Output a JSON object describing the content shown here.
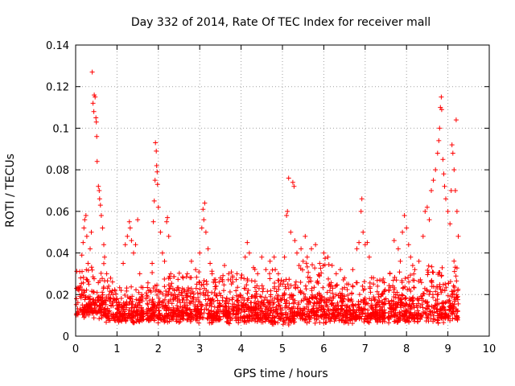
{
  "chart_data": {
    "type": "scatter",
    "title": "Day 332 of 2014, Rate Of TEC Index for receiver mall",
    "xlabel": "GPS time / hours",
    "ylabel": "ROTI / TECUs",
    "xlim": [
      0,
      10
    ],
    "ylim": [
      0,
      0.14
    ],
    "xticks": [
      "0",
      "1",
      "2",
      "3",
      "4",
      "5",
      "6",
      "7",
      "8",
      "9",
      "10"
    ],
    "yticks": [
      "0",
      "0.02",
      "0.04",
      "0.06",
      "0.08",
      "0.1",
      "0.12",
      "0.14"
    ],
    "grid": true,
    "marker": "+",
    "series_color": "#ff0000",
    "series": [
      {
        "name": "ROTI",
        "points": [
          [
            0.02,
            0.018
          ],
          [
            0.05,
            0.012
          ],
          [
            0.08,
            0.022
          ],
          [
            0.1,
            0.031
          ],
          [
            0.12,
            0.028
          ],
          [
            0.15,
            0.039
          ],
          [
            0.18,
            0.045
          ],
          [
            0.2,
            0.052
          ],
          [
            0.22,
            0.056
          ],
          [
            0.25,
            0.058
          ],
          [
            0.27,
            0.048
          ],
          [
            0.3,
            0.035
          ],
          [
            0.32,
            0.025
          ],
          [
            0.35,
            0.042
          ],
          [
            0.38,
            0.05
          ],
          [
            0.4,
            0.127
          ],
          [
            0.42,
            0.112
          ],
          [
            0.44,
            0.108
          ],
          [
            0.45,
            0.116
          ],
          [
            0.47,
            0.115
          ],
          [
            0.49,
            0.105
          ],
          [
            0.5,
            0.103
          ],
          [
            0.51,
            0.096
          ],
          [
            0.52,
            0.084
          ],
          [
            0.55,
            0.072
          ],
          [
            0.57,
            0.07
          ],
          [
            0.58,
            0.066
          ],
          [
            0.6,
            0.063
          ],
          [
            0.62,
            0.058
          ],
          [
            0.65,
            0.052
          ],
          [
            0.68,
            0.044
          ],
          [
            0.7,
            0.038
          ],
          [
            0.75,
            0.03
          ],
          [
            0.8,
            0.024
          ],
          [
            0.9,
            0.02
          ],
          [
            1.0,
            0.018
          ],
          [
            1.1,
            0.022
          ],
          [
            1.15,
            0.035
          ],
          [
            1.2,
            0.044
          ],
          [
            1.25,
            0.048
          ],
          [
            1.3,
            0.055
          ],
          [
            1.32,
            0.052
          ],
          [
            1.35,
            0.046
          ],
          [
            1.4,
            0.04
          ],
          [
            1.45,
            0.044
          ],
          [
            1.5,
            0.056
          ],
          [
            1.55,
            0.03
          ],
          [
            1.6,
            0.02
          ],
          [
            1.7,
            0.018
          ],
          [
            1.8,
            0.022
          ],
          [
            1.85,
            0.035
          ],
          [
            1.88,
            0.055
          ],
          [
            1.9,
            0.065
          ],
          [
            1.92,
            0.075
          ],
          [
            1.93,
            0.093
          ],
          [
            1.95,
            0.089
          ],
          [
            1.96,
            0.082
          ],
          [
            1.97,
            0.079
          ],
          [
            1.98,
            0.073
          ],
          [
            2.0,
            0.062
          ],
          [
            2.05,
            0.05
          ],
          [
            2.1,
            0.04
          ],
          [
            2.15,
            0.036
          ],
          [
            2.2,
            0.055
          ],
          [
            2.22,
            0.057
          ],
          [
            2.25,
            0.048
          ],
          [
            2.3,
            0.03
          ],
          [
            2.4,
            0.02
          ],
          [
            2.5,
            0.022
          ],
          [
            2.6,
            0.028
          ],
          [
            2.7,
            0.03
          ],
          [
            2.8,
            0.036
          ],
          [
            2.9,
            0.032
          ],
          [
            3.0,
            0.04
          ],
          [
            3.05,
            0.052
          ],
          [
            3.08,
            0.061
          ],
          [
            3.1,
            0.056
          ],
          [
            3.12,
            0.064
          ],
          [
            3.15,
            0.05
          ],
          [
            3.2,
            0.042
          ],
          [
            3.25,
            0.035
          ],
          [
            3.3,
            0.03
          ],
          [
            3.4,
            0.024
          ],
          [
            3.5,
            0.028
          ],
          [
            3.6,
            0.034
          ],
          [
            3.7,
            0.03
          ],
          [
            3.8,
            0.026
          ],
          [
            3.9,
            0.03
          ],
          [
            4.0,
            0.028
          ],
          [
            4.1,
            0.038
          ],
          [
            4.15,
            0.045
          ],
          [
            4.2,
            0.04
          ],
          [
            4.3,
            0.033
          ],
          [
            4.4,
            0.03
          ],
          [
            4.5,
            0.038
          ],
          [
            4.6,
            0.032
          ],
          [
            4.7,
            0.036
          ],
          [
            4.8,
            0.038
          ],
          [
            4.9,
            0.03
          ],
          [
            5.0,
            0.025
          ],
          [
            5.05,
            0.038
          ],
          [
            5.1,
            0.058
          ],
          [
            5.12,
            0.06
          ],
          [
            5.15,
            0.076
          ],
          [
            5.2,
            0.05
          ],
          [
            5.25,
            0.074
          ],
          [
            5.28,
            0.072
          ],
          [
            5.3,
            0.046
          ],
          [
            5.35,
            0.04
          ],
          [
            5.4,
            0.034
          ],
          [
            5.45,
            0.042
          ],
          [
            5.5,
            0.036
          ],
          [
            5.55,
            0.048
          ],
          [
            5.6,
            0.038
          ],
          [
            5.7,
            0.042
          ],
          [
            5.8,
            0.044
          ],
          [
            5.9,
            0.035
          ],
          [
            6.0,
            0.04
          ],
          [
            6.1,
            0.038
          ],
          [
            6.2,
            0.034
          ],
          [
            6.3,
            0.03
          ],
          [
            6.4,
            0.032
          ],
          [
            6.5,
            0.028
          ],
          [
            6.6,
            0.025
          ],
          [
            6.7,
            0.032
          ],
          [
            6.8,
            0.042
          ],
          [
            6.85,
            0.045
          ],
          [
            6.9,
            0.06
          ],
          [
            6.92,
            0.066
          ],
          [
            6.95,
            0.05
          ],
          [
            7.0,
            0.044
          ],
          [
            7.05,
            0.045
          ],
          [
            7.1,
            0.038
          ],
          [
            7.2,
            0.028
          ],
          [
            7.3,
            0.024
          ],
          [
            7.4,
            0.02
          ],
          [
            7.5,
            0.018
          ],
          [
            7.6,
            0.03
          ],
          [
            7.7,
            0.046
          ],
          [
            7.8,
            0.042
          ],
          [
            7.85,
            0.036
          ],
          [
            7.9,
            0.05
          ],
          [
            7.95,
            0.058
          ],
          [
            8.0,
            0.052
          ],
          [
            8.05,
            0.044
          ],
          [
            8.1,
            0.038
          ],
          [
            8.15,
            0.034
          ],
          [
            8.2,
            0.032
          ],
          [
            8.3,
            0.036
          ],
          [
            8.4,
            0.048
          ],
          [
            8.45,
            0.06
          ],
          [
            8.5,
            0.062
          ],
          [
            8.55,
            0.056
          ],
          [
            8.6,
            0.07
          ],
          [
            8.65,
            0.075
          ],
          [
            8.7,
            0.08
          ],
          [
            8.75,
            0.088
          ],
          [
            8.78,
            0.094
          ],
          [
            8.8,
            0.1
          ],
          [
            8.82,
            0.11
          ],
          [
            8.84,
            0.115
          ],
          [
            8.85,
            0.109
          ],
          [
            8.88,
            0.085
          ],
          [
            8.9,
            0.078
          ],
          [
            8.92,
            0.072
          ],
          [
            8.95,
            0.066
          ],
          [
            9.0,
            0.06
          ],
          [
            9.05,
            0.054
          ],
          [
            9.08,
            0.07
          ],
          [
            9.1,
            0.092
          ],
          [
            9.12,
            0.088
          ],
          [
            9.15,
            0.08
          ],
          [
            9.18,
            0.07
          ],
          [
            9.2,
            0.104
          ],
          [
            9.22,
            0.06
          ],
          [
            9.25,
            0.048
          ]
        ]
      }
    ],
    "noise_bands": [
      [
        0.0,
        0.7,
        0.008,
        0.036
      ],
      [
        0.7,
        1.65,
        0.006,
        0.026
      ],
      [
        1.7,
        2.3,
        0.006,
        0.032
      ],
      [
        2.3,
        3.3,
        0.006,
        0.032
      ],
      [
        3.3,
        4.6,
        0.006,
        0.03
      ],
      [
        4.6,
        5.3,
        0.005,
        0.032
      ],
      [
        5.3,
        6.3,
        0.006,
        0.036
      ],
      [
        6.3,
        7.5,
        0.006,
        0.03
      ],
      [
        7.55,
        8.5,
        0.006,
        0.032
      ],
      [
        8.5,
        9.25,
        0.006,
        0.036
      ]
    ]
  }
}
